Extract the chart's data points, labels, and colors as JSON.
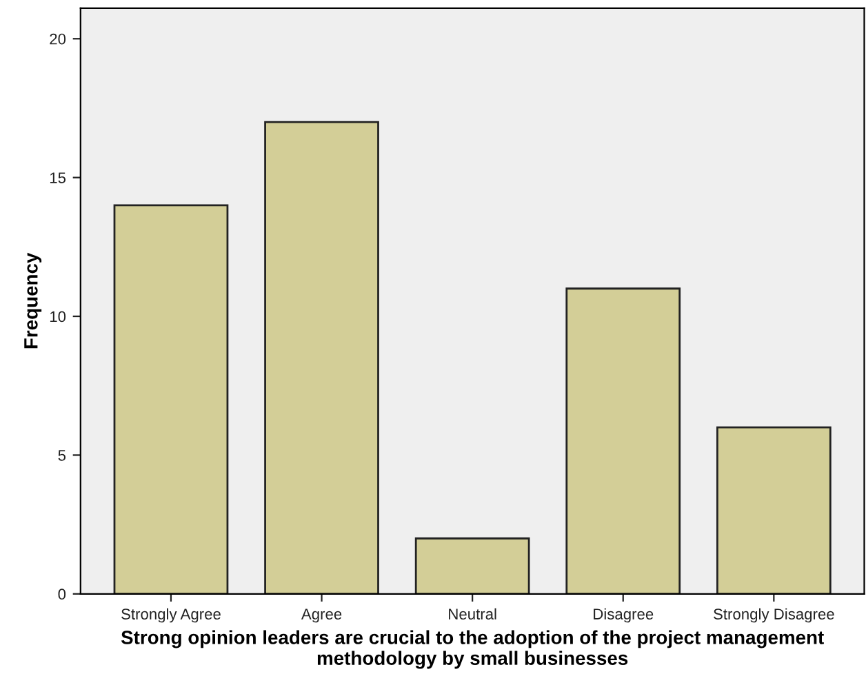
{
  "chart_data": {
    "type": "bar",
    "xlabel": "Strong opinion leaders are crucial to the adoption of the project management methodology by small businesses",
    "ylabel": "Frequency",
    "categories": [
      "Strongly Agree",
      "Agree",
      "Neutral",
      "Disagree",
      "Strongly Disagree"
    ],
    "values": [
      14,
      17,
      2,
      11,
      6
    ],
    "color": "#d3ce97",
    "ylim": [
      0,
      21.1
    ],
    "yticks": [
      0,
      5,
      10,
      15,
      20
    ],
    "grid": false
  }
}
